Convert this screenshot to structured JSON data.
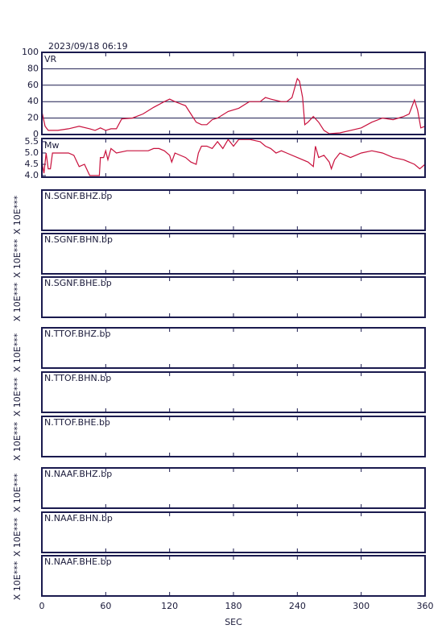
{
  "title": "2023/09/18 06:19",
  "chart_data": [
    {
      "type": "line",
      "title": "VR",
      "color": "#c8103c",
      "grid": true,
      "xlim": [
        0,
        360
      ],
      "ylim": [
        0,
        100
      ],
      "yticks": [
        0,
        20,
        40,
        60,
        80,
        100
      ],
      "x": [
        0,
        3,
        6,
        15,
        25,
        35,
        45,
        50,
        55,
        60,
        65,
        70,
        75,
        85,
        95,
        105,
        115,
        120,
        125,
        135,
        140,
        145,
        150,
        155,
        160,
        165,
        175,
        185,
        195,
        205,
        210,
        215,
        225,
        230,
        235,
        240,
        242,
        245,
        247,
        250,
        255,
        260,
        265,
        270,
        280,
        290,
        300,
        310,
        320,
        330,
        340,
        345,
        350,
        353,
        356,
        360
      ],
      "values": [
        28,
        10,
        5,
        5,
        7,
        10,
        7,
        5,
        8,
        5,
        7,
        7,
        19,
        20,
        25,
        33,
        40,
        43,
        40,
        35,
        25,
        15,
        12,
        12,
        18,
        20,
        28,
        32,
        40,
        40,
        45,
        43,
        40,
        40,
        45,
        68,
        65,
        45,
        12,
        15,
        22,
        15,
        5,
        1,
        2,
        5,
        8,
        15,
        20,
        18,
        22,
        25,
        42,
        30,
        8,
        10
      ]
    },
    {
      "type": "line",
      "title": "Mw",
      "color": "#c8103c",
      "grid": false,
      "xlim": [
        0,
        360
      ],
      "ylim": [
        3.93,
        5.64
      ],
      "yticks": [
        {
          "value": 4,
          "label": "4.0"
        },
        4.5,
        {
          "value": 5,
          "label": "5.0"
        },
        5.5
      ],
      "x": [
        0,
        2,
        4,
        6,
        8,
        10,
        15,
        20,
        25,
        30,
        35,
        40,
        45,
        50,
        54,
        55,
        58,
        60,
        62,
        65,
        70,
        80,
        90,
        100,
        105,
        110,
        115,
        120,
        122,
        125,
        135,
        140,
        145,
        147,
        150,
        155,
        160,
        165,
        170,
        175,
        180,
        185,
        195,
        205,
        210,
        215,
        220,
        225,
        230,
        240,
        250,
        255,
        257,
        260,
        265,
        270,
        272,
        275,
        280,
        290,
        300,
        310,
        320,
        330,
        340,
        350,
        355,
        360
      ],
      "values": [
        4.6,
        4.1,
        5.0,
        4.3,
        4.3,
        5.0,
        5.0,
        5.0,
        5.0,
        4.9,
        4.4,
        4.5,
        4.0,
        4.0,
        4.0,
        4.8,
        4.8,
        5.1,
        4.7,
        5.2,
        5.0,
        5.1,
        5.1,
        5.1,
        5.2,
        5.2,
        5.1,
        4.9,
        4.6,
        5.0,
        4.8,
        4.6,
        4.5,
        5.0,
        5.3,
        5.3,
        5.2,
        5.5,
        5.2,
        5.6,
        5.3,
        5.6,
        5.6,
        5.5,
        5.3,
        5.2,
        5.0,
        5.1,
        5.0,
        4.8,
        4.6,
        4.4,
        5.3,
        4.8,
        4.9,
        4.6,
        4.3,
        4.7,
        5.0,
        4.8,
        5.0,
        5.1,
        5.0,
        4.8,
        4.7,
        4.5,
        4.3,
        4.5
      ]
    }
  ],
  "panels": [
    {
      "title": "N.SGNF.BHZ.bp",
      "ylabel": "X 10E***"
    },
    {
      "title": "N.SGNF.BHN.bp",
      "ylabel": "X 10E***"
    },
    {
      "title": "N.SGNF.BHE.bp",
      "ylabel": "X 10E***"
    },
    {
      "title": "N.TTOF.BHZ.bp",
      "ylabel": "X 10E***"
    },
    {
      "title": "N.TTOF.BHN.bp",
      "ylabel": "X 10E***"
    },
    {
      "title": "N.TTOF.BHE.bp",
      "ylabel": "X 10E***"
    },
    {
      "title": "N.NAAF.BHZ.bp",
      "ylabel": "X 10E***"
    },
    {
      "title": "N.NAAF.BHN.bp",
      "ylabel": "X 10E***"
    },
    {
      "title": "N.NAAF.BHE.bp",
      "ylabel": "X 10E***"
    }
  ],
  "x_axis": {
    "label": "SEC",
    "xlim": [
      0,
      360
    ],
    "xticks": [
      0,
      60,
      120,
      180,
      240,
      300,
      360
    ]
  }
}
